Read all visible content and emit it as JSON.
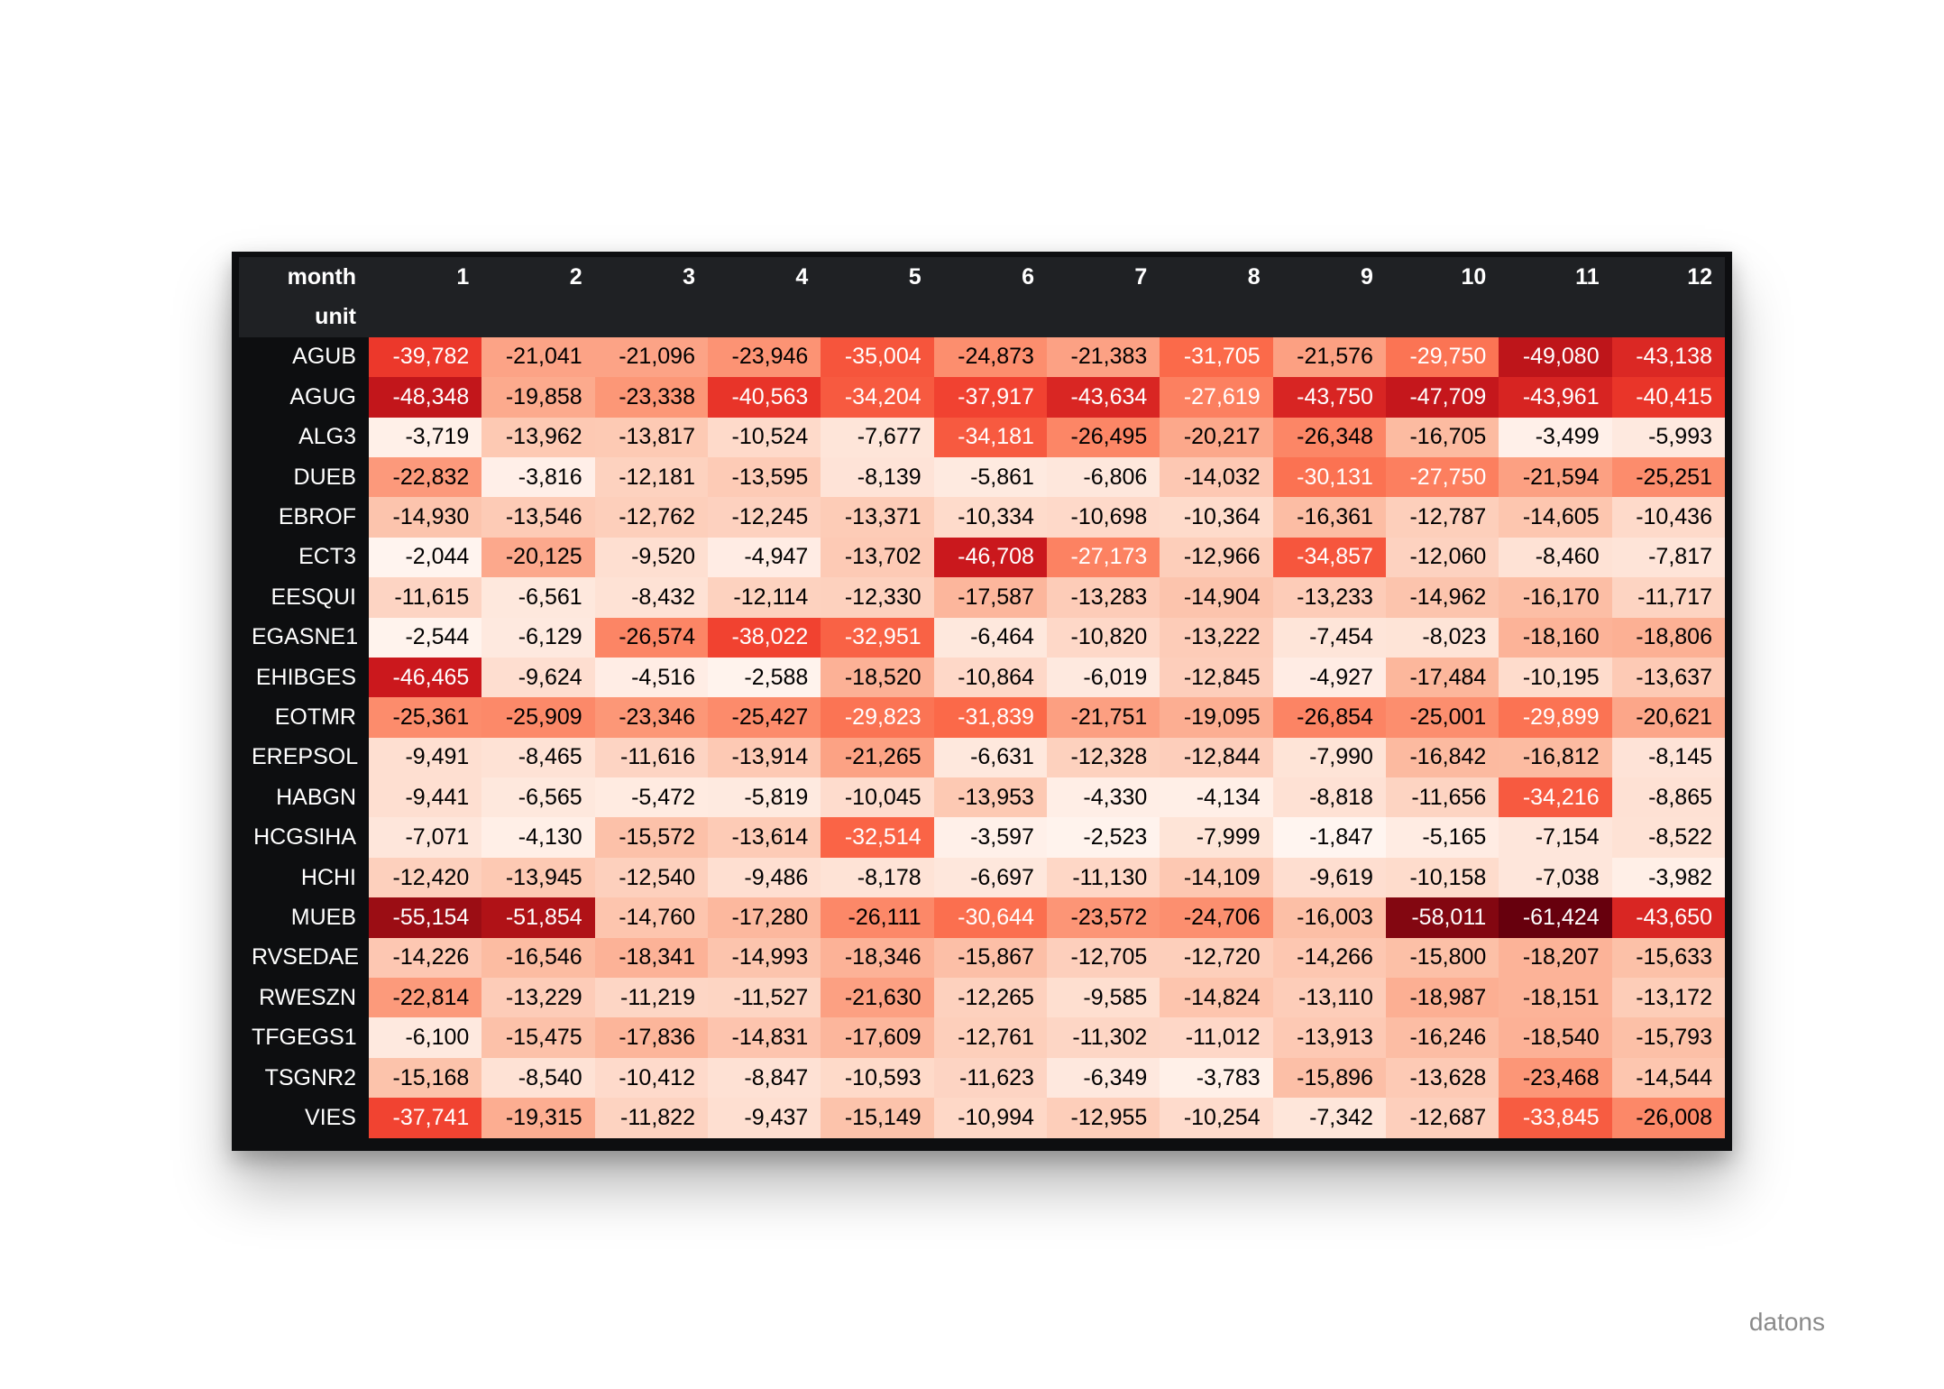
{
  "chart_data": {
    "type": "heatmap",
    "column_header_label": "month",
    "row_header_label": "unit",
    "columns": [
      "1",
      "2",
      "3",
      "4",
      "5",
      "6",
      "7",
      "8",
      "9",
      "10",
      "11",
      "12"
    ],
    "rows": [
      "AGUB",
      "AGUG",
      "ALG3",
      "DUEB",
      "EBROF",
      "ECT3",
      "EESQUI",
      "EGASNE1",
      "EHIBGES",
      "EOTMR",
      "EREPSOL",
      "HABGN",
      "HCGSIHA",
      "HCHI",
      "MUEB",
      "RVSEDAE",
      "RWESZN",
      "TFGEGS1",
      "TSGNR2",
      "VIES"
    ],
    "values": [
      [
        -39782,
        -21041,
        -21096,
        -23946,
        -35004,
        -24873,
        -21383,
        -31705,
        -21576,
        -29750,
        -49080,
        -43138
      ],
      [
        -48348,
        -19858,
        -23338,
        -40563,
        -34204,
        -37917,
        -43634,
        -27619,
        -43750,
        -47709,
        -43961,
        -40415
      ],
      [
        -3719,
        -13962,
        -13817,
        -10524,
        -7677,
        -34181,
        -26495,
        -20217,
        -26348,
        -16705,
        -3499,
        -5993
      ],
      [
        -22832,
        -3816,
        -12181,
        -13595,
        -8139,
        -5861,
        -6806,
        -14032,
        -30131,
        -27750,
        -21594,
        -25251
      ],
      [
        -14930,
        -13546,
        -12762,
        -12245,
        -13371,
        -10334,
        -10698,
        -10364,
        -16361,
        -12787,
        -14605,
        -10436
      ],
      [
        -2044,
        -20125,
        -9520,
        -4947,
        -13702,
        -46708,
        -27173,
        -12966,
        -34857,
        -12060,
        -8460,
        -7817
      ],
      [
        -11615,
        -6561,
        -8432,
        -12114,
        -12330,
        -17587,
        -13283,
        -14904,
        -13233,
        -14962,
        -16170,
        -11717
      ],
      [
        -2544,
        -6129,
        -26574,
        -38022,
        -32951,
        -6464,
        -10820,
        -13222,
        -7454,
        -8023,
        -18160,
        -18806
      ],
      [
        -46465,
        -9624,
        -4516,
        -2588,
        -18520,
        -10864,
        -6019,
        -12845,
        -4927,
        -17484,
        -10195,
        -13637
      ],
      [
        -25361,
        -25909,
        -23346,
        -25427,
        -29823,
        -31839,
        -21751,
        -19095,
        -26854,
        -25001,
        -29899,
        -20621
      ],
      [
        -9491,
        -8465,
        -11616,
        -13914,
        -21265,
        -6631,
        -12328,
        -12844,
        -7990,
        -16842,
        -16812,
        -8145
      ],
      [
        -9441,
        -6565,
        -5472,
        -5819,
        -10045,
        -13953,
        -4330,
        -4134,
        -8818,
        -11656,
        -34216,
        -8865
      ],
      [
        -7071,
        -4130,
        -15572,
        -13614,
        -32514,
        -3597,
        -2523,
        -7999,
        -1847,
        -5165,
        -7154,
        -8522
      ],
      [
        -12420,
        -13945,
        -12540,
        -9486,
        -8178,
        -6697,
        -11130,
        -14109,
        -9619,
        -10158,
        -7038,
        -3982
      ],
      [
        -55154,
        -51854,
        -14760,
        -17280,
        -26111,
        -30644,
        -23572,
        -24706,
        -16003,
        -58011,
        -61424,
        -43650
      ],
      [
        -14226,
        -16546,
        -18341,
        -14993,
        -18346,
        -15867,
        -12705,
        -12720,
        -14266,
        -15800,
        -18207,
        -15633
      ],
      [
        -22814,
        -13229,
        -11219,
        -11527,
        -21630,
        -12265,
        -9585,
        -14824,
        -13110,
        -18987,
        -18151,
        -13172
      ],
      [
        -6100,
        -15475,
        -17836,
        -14831,
        -17609,
        -12761,
        -11302,
        -11012,
        -13913,
        -16246,
        -18540,
        -15793
      ],
      [
        -15168,
        -8540,
        -10412,
        -8847,
        -10593,
        -11623,
        -6349,
        -3783,
        -15896,
        -13628,
        -23468,
        -14544
      ],
      [
        -37741,
        -19315,
        -11822,
        -9437,
        -15149,
        -10994,
        -12955,
        -10254,
        -7342,
        -12687,
        -33845,
        -26008
      ]
    ],
    "colormap": "Reds (more negative = darker)",
    "value_range": [
      -61424,
      -1847
    ],
    "colors": {
      "light": "#fff5f0",
      "mid": "#fb6a4a",
      "dark": "#67000d",
      "header_bg": "#1f2124",
      "index_bg": "#0d0e10"
    }
  },
  "brand": "datons"
}
